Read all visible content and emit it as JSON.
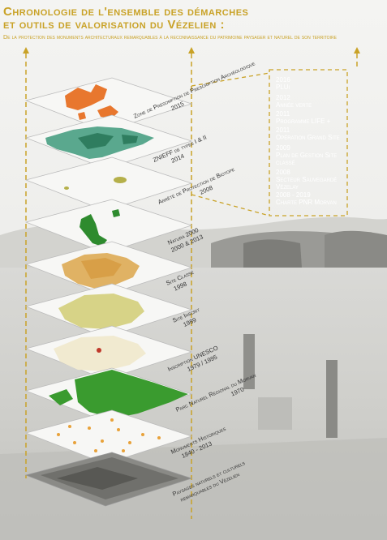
{
  "title": {
    "line1": "Chronologie de l'ensemble des démarches",
    "line2": "et outils de valorisation du Vézelien :",
    "subtitle": "De la protection des monuments architecturaux remarquables à la reconnaissance du patrimoine paysager et naturel de son territoire"
  },
  "colors": {
    "accent": "#c9a227",
    "orange": "#e8772e",
    "teal": "#5aa88e",
    "green": "#2e8b2e",
    "olive": "#b5b04a",
    "sand": "#e0b264",
    "pale": "#f1ead0"
  },
  "layers": [
    {
      "label": "Zone de Présomption de Prescription Archéologique",
      "year": "2015"
    },
    {
      "label": "ZNIEFF de types I & II",
      "year": "2014"
    },
    {
      "label": "Arrêté de Protection de Biotope",
      "year": "2008"
    },
    {
      "label": "Natura 2000",
      "year": "2000 & 2013"
    },
    {
      "label": "Site Classé",
      "year": "1998"
    },
    {
      "label": "Site Inscrit",
      "year": "1989"
    },
    {
      "label": "Inscription UNESCO",
      "year": "1979 / 1995"
    },
    {
      "label": "Parc Naturel Régional du Morvan",
      "year": "1970"
    },
    {
      "label": "Monuments Historiques",
      "year": "1840 - 2013"
    },
    {
      "label": "Paysages naturels et culturels",
      "year": "remarquables du Vézelien"
    }
  ],
  "timeline": [
    {
      "year": "2016",
      "text": "PLUi"
    },
    {
      "year": "2012",
      "text": "Année verte"
    },
    {
      "year": "2011",
      "text": "Programme LIFE +"
    },
    {
      "year": "2011",
      "text": "Opération Grand Site"
    },
    {
      "year": "2009",
      "text": "Plan de Gestion Site classé"
    },
    {
      "year": "2008",
      "text": "Secteur Sauvegardé Vézelay"
    },
    {
      "year": "2008 - 2019",
      "text": "Charte PNR Morvan"
    }
  ]
}
